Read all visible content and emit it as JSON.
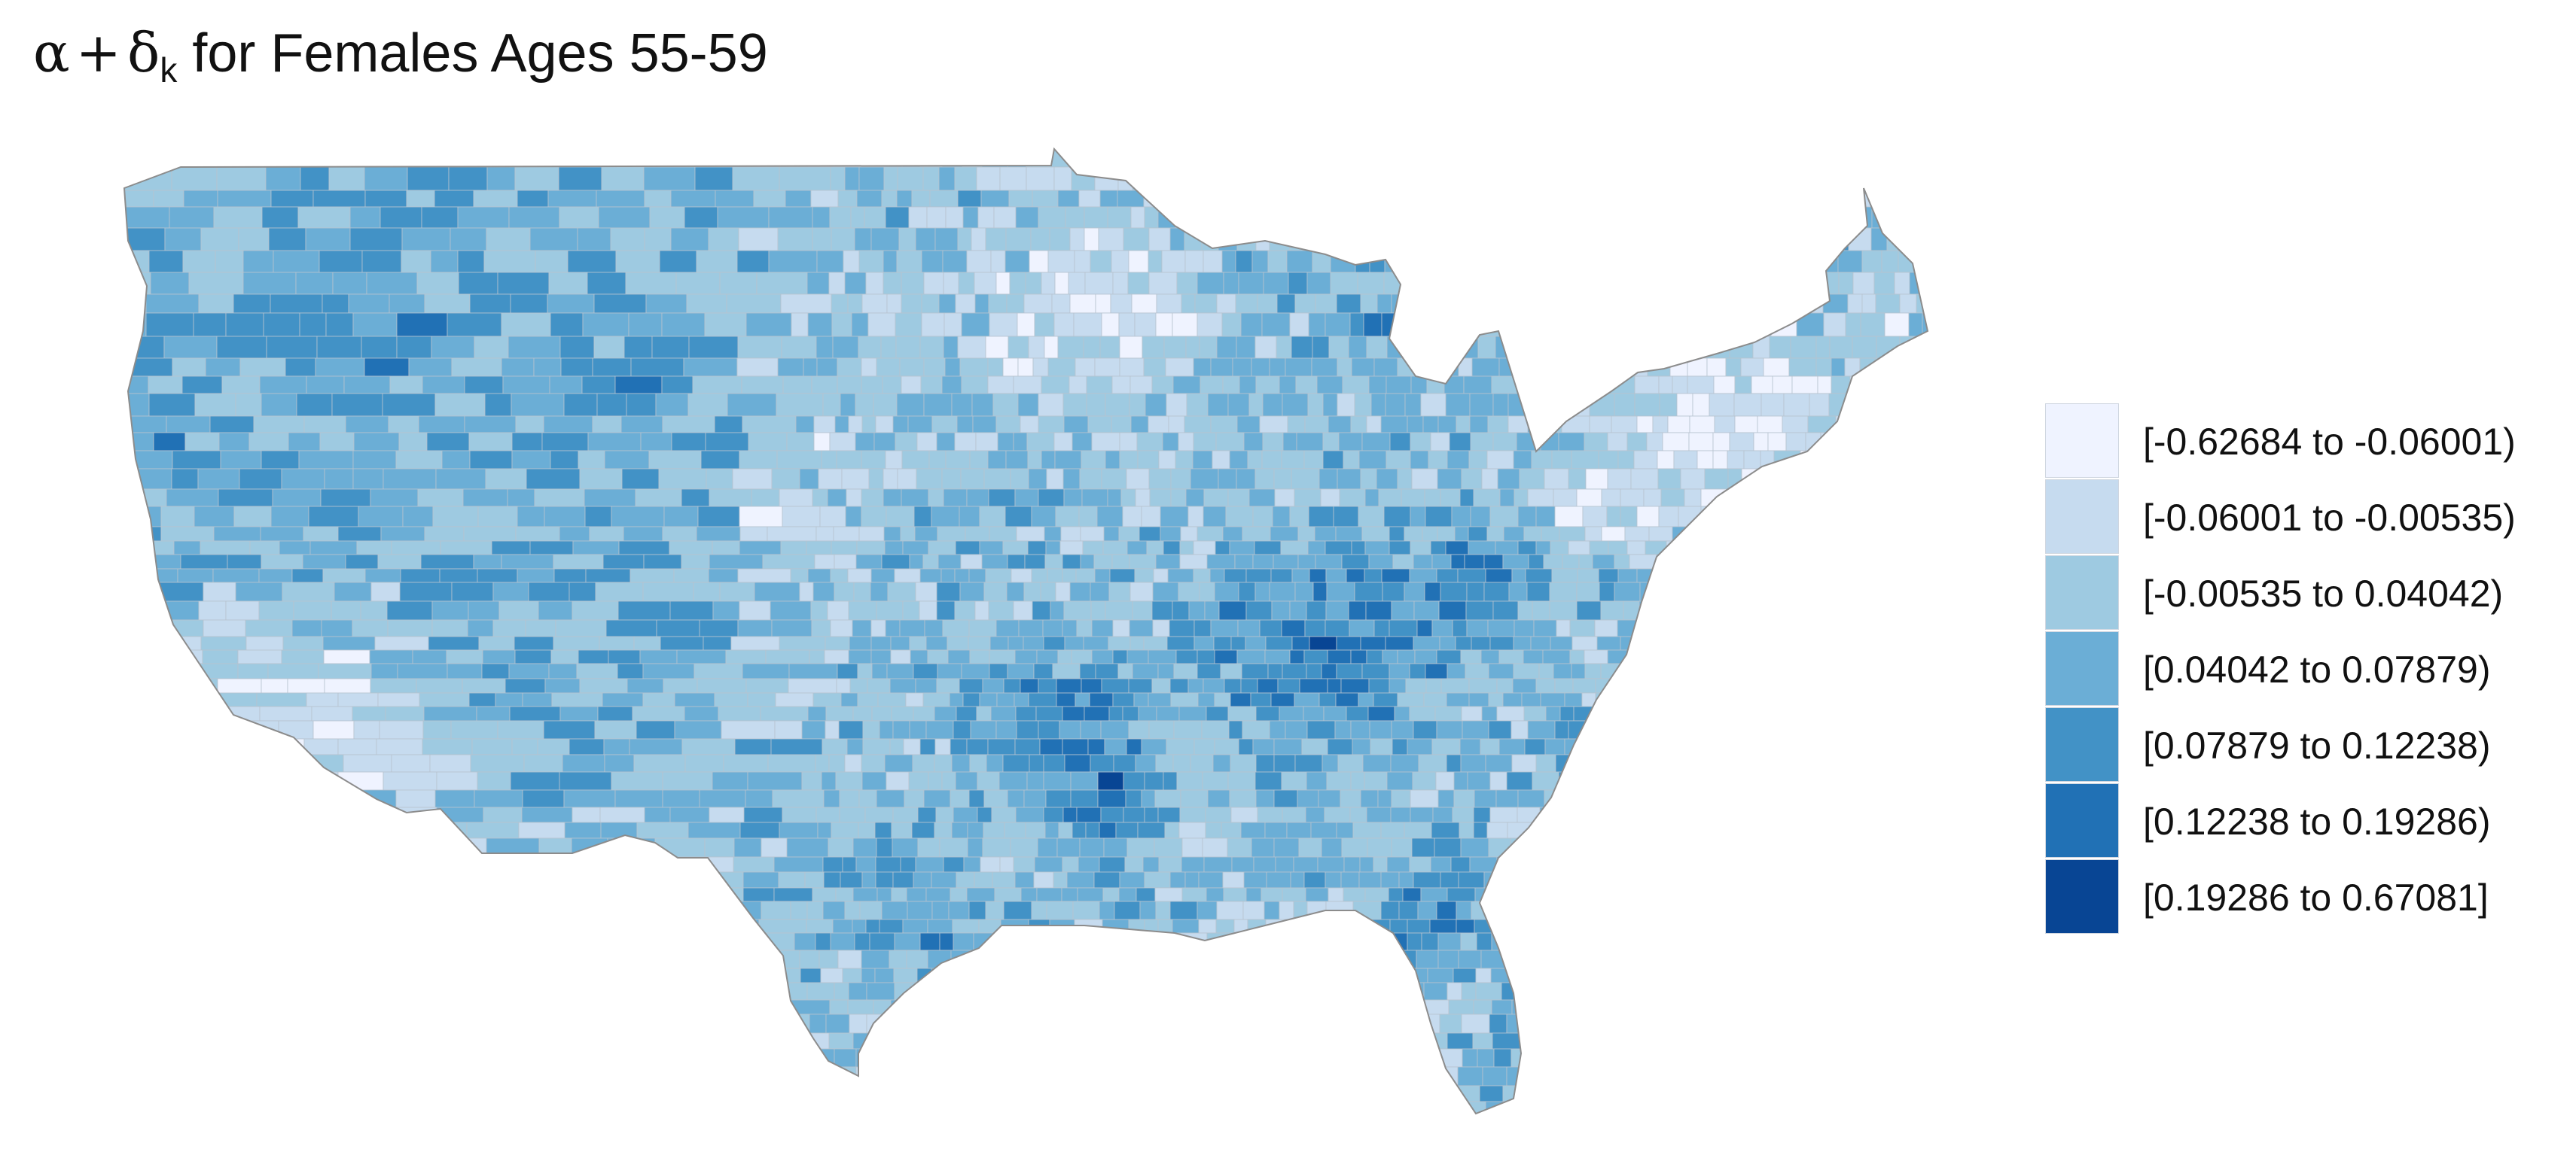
{
  "title": {
    "alpha": "α",
    "plus": "+",
    "delta": "δ",
    "subscript": "k",
    "text": "for Females Ages 55-59"
  },
  "palette": [
    "#eff3ff",
    "#c6dbef",
    "#9ecae1",
    "#6baed6",
    "#4292c6",
    "#2171b5",
    "#084594"
  ],
  "legend": {
    "items": [
      {
        "label": "[-0.62684 to -0.06001)",
        "color": "#eff3ff"
      },
      {
        "label": "[-0.06001 to -0.00535)",
        "color": "#c6dbef"
      },
      {
        "label": "[-0.00535 to 0.04042)",
        "color": "#9ecae1"
      },
      {
        "label": "[0.04042 to 0.07879)",
        "color": "#6baed6"
      },
      {
        "label": "[0.07879 to 0.12238)",
        "color": "#4292c6"
      },
      {
        "label": "[0.12238 to 0.19286)",
        "color": "#2171b5"
      },
      {
        "label": "[0.19286 to 0.67081]",
        "color": "#084594"
      }
    ]
  }
}
